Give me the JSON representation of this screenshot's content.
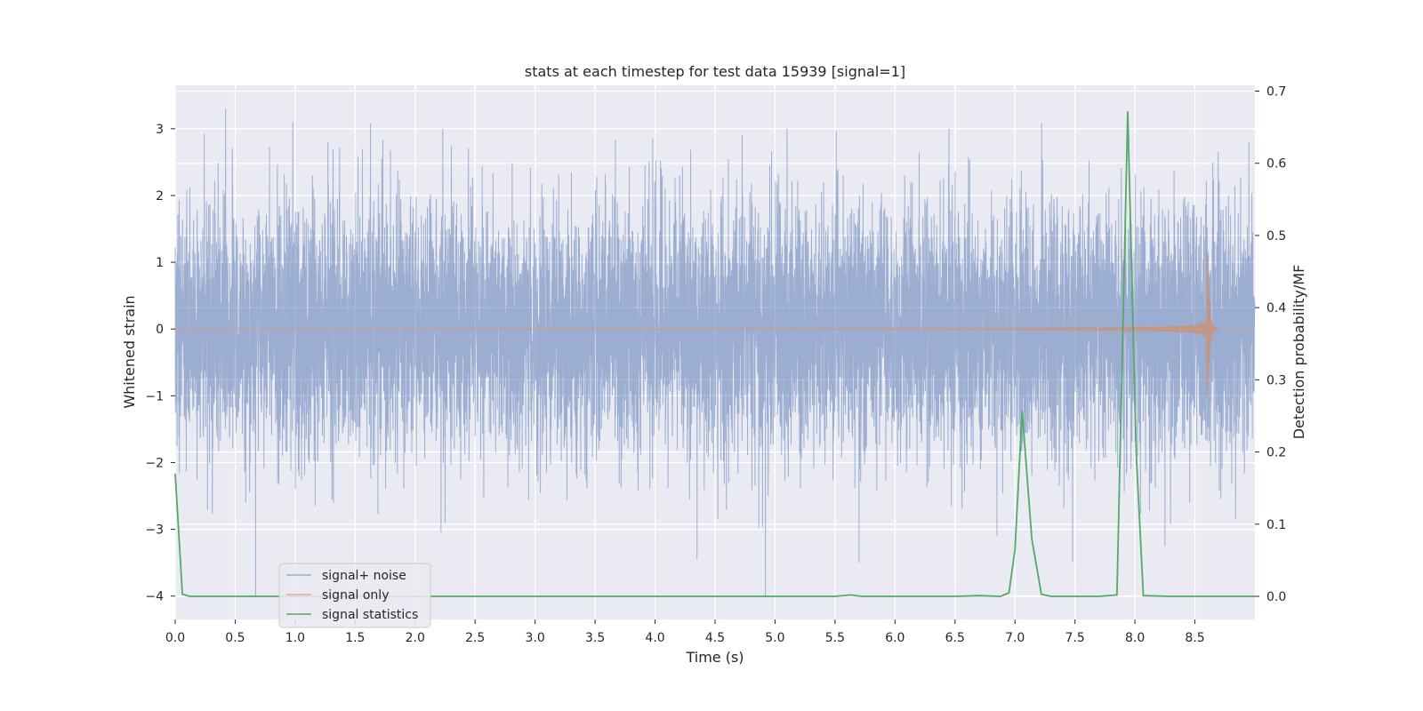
{
  "chart_data": {
    "type": "line",
    "title": "stats at each timestep for test data 15939 [signal=1]",
    "xlabel": "Time (s)",
    "ylabel": "Whitened strain",
    "y2label": "Detection probability/MF",
    "xlim": [
      0,
      9.0
    ],
    "ylim": [
      -4.35,
      3.65
    ],
    "y2lim": [
      -0.032,
      0.708
    ],
    "xticks": [
      "0.0",
      "0.5",
      "1.0",
      "1.5",
      "2.0",
      "2.5",
      "3.0",
      "3.5",
      "4.0",
      "4.5",
      "5.0",
      "5.5",
      "6.0",
      "6.5",
      "7.0",
      "7.5",
      "8.0",
      "8.5"
    ],
    "yticks": [
      "3",
      "2",
      "1",
      "0",
      "−1",
      "−2",
      "−3",
      "−4"
    ],
    "y2ticks": [
      "0.7",
      "0.6",
      "0.5",
      "0.4",
      "0.3",
      "0.2",
      "0.1",
      "0.0"
    ],
    "grid": true,
    "legend_position": "lower-left",
    "series": [
      {
        "name": "signal+ noise",
        "color": "#4c72b0",
        "axis": "left",
        "kind": "noise",
        "samples": 9000,
        "sigma": 1.0,
        "peaks": [
          {
            "x": 0.42,
            "y": 3.3
          },
          {
            "x": 0.98,
            "y": 3.1
          },
          {
            "x": 2.23,
            "y": 3.0
          },
          {
            "x": 3.98,
            "y": 2.85
          },
          {
            "x": 5.1,
            "y": 3.0
          },
          {
            "x": 6.45,
            "y": 3.0
          },
          {
            "x": 8.95,
            "y": 2.8
          },
          {
            "x": 0.67,
            "y": -4.0
          },
          {
            "x": 4.92,
            "y": -4.0
          },
          {
            "x": 5.7,
            "y": -3.5
          },
          {
            "x": 4.35,
            "y": -3.45
          },
          {
            "x": 8.25,
            "y": -3.25
          },
          {
            "x": 2.25,
            "y": -2.9
          },
          {
            "x": 6.85,
            "y": -3.1
          }
        ]
      },
      {
        "name": "signal only",
        "color": "#dd8452",
        "axis": "left",
        "kind": "chirp",
        "start": 0.0,
        "merger": 8.63,
        "peak_amplitude": 0.98,
        "min_amplitude": -0.85
      },
      {
        "name": "signal statistics",
        "color": "#55a868",
        "axis": "right",
        "x": [
          0.0,
          0.06,
          0.12,
          0.3,
          1.0,
          2.0,
          3.0,
          4.0,
          5.0,
          5.5,
          5.63,
          5.72,
          6.0,
          6.5,
          6.7,
          6.88,
          6.95,
          7.0,
          7.06,
          7.14,
          7.22,
          7.3,
          7.5,
          7.7,
          7.85,
          7.94,
          8.01,
          8.07,
          8.3,
          8.6,
          9.0
        ],
        "y": [
          0.17,
          0.003,
          0.0,
          0.0,
          0.0,
          0.0,
          0.0,
          0.0,
          0.0,
          0.0,
          0.002,
          0.0,
          0.0,
          0.0,
          0.001,
          0.0,
          0.005,
          0.065,
          0.257,
          0.08,
          0.003,
          0.0,
          0.0,
          0.0,
          0.002,
          0.672,
          0.2,
          0.001,
          0.0,
          0.0,
          0.0
        ]
      }
    ]
  }
}
